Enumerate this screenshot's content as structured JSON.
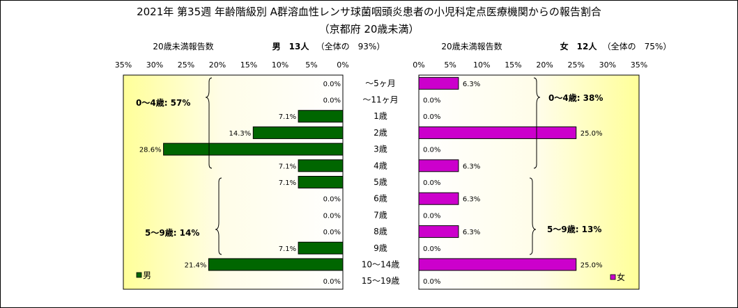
{
  "title": "2021年 第35週 年齢階級別 A群溶血性レンサ球菌咽頭炎患者の小児科定点医療機関からの報告割合",
  "subtitle": "（京都府 20歳未満）",
  "chart_data": {
    "type": "bar",
    "categories": [
      "～5ヶ月",
      "～11ヶ月",
      "1歳",
      "2歳",
      "3歳",
      "4歳",
      "5歳",
      "6歳",
      "7歳",
      "8歳",
      "9歳",
      "10～14歳",
      "15～19歳"
    ],
    "xlim": [
      0,
      35
    ],
    "ticks": [
      "0%",
      "5%",
      "10%",
      "15%",
      "20%",
      "25%",
      "30%",
      "35%"
    ],
    "male": {
      "name": "男",
      "header_label": "20歳未満報告数",
      "header_count": "男　13人",
      "header_note": "（全体の　93%）",
      "color": "#006600",
      "values": [
        0.0,
        0.0,
        7.1,
        14.3,
        28.6,
        7.1,
        7.1,
        0.0,
        0.0,
        0.0,
        7.1,
        21.4,
        0.0
      ],
      "labels": [
        "0.0%",
        "0.0%",
        "7.1%",
        "14.3%",
        "28.6%",
        "7.1%",
        "7.1%",
        "0.0%",
        "0.0%",
        "0.0%",
        "7.1%",
        "21.4%",
        "0.0%"
      ],
      "annot_0_4": "0～4歳: 57%",
      "annot_5_9": "5～9歳: 14%"
    },
    "female": {
      "name": "女",
      "header_label": "20歳未満報告数",
      "header_count": "女　12人",
      "header_note": "（全体の　75%）",
      "color": "#cc00cc",
      "values": [
        6.3,
        0.0,
        0.0,
        25.0,
        0.0,
        6.3,
        0.0,
        6.3,
        0.0,
        6.3,
        0.0,
        25.0,
        0.0
      ],
      "labels": [
        "6.3%",
        "0.0%",
        "0.0%",
        "25.0%",
        "0.0%",
        "6.3%",
        "0.0%",
        "6.3%",
        "0.0%",
        "6.3%",
        "0.0%",
        "25.0%",
        "0.0%"
      ],
      "annot_0_4": "0～4歳: 38%",
      "annot_5_9": "5～9歳: 13%"
    }
  }
}
